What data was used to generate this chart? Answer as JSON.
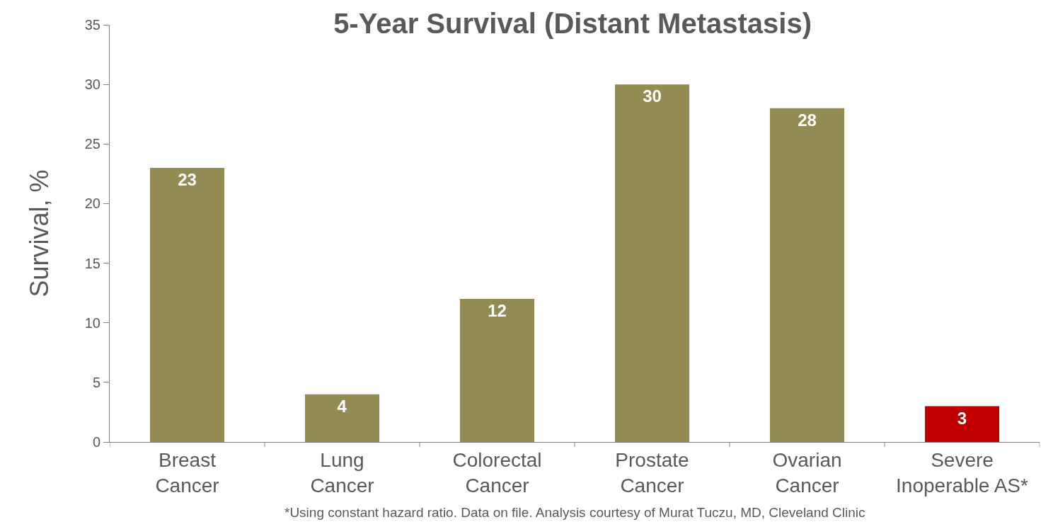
{
  "chart_data": {
    "type": "bar",
    "title": "5-Year Survival (Distant Metastasis)",
    "ylabel": "Survival, %",
    "categories": [
      "Breast\nCancer",
      "Lung\nCancer",
      "Colorectal\nCancer",
      "Prostate\nCancer",
      "Ovarian\nCancer",
      "Severe\nInoperable AS*"
    ],
    "values": [
      23,
      4,
      12,
      30,
      28,
      3
    ],
    "colors": [
      "#948a54",
      "#948a54",
      "#948a54",
      "#948a54",
      "#948a54",
      "#c00000"
    ],
    "ylim": [
      0,
      35
    ],
    "yticks": [
      0,
      5,
      10,
      15,
      20,
      25,
      30,
      35
    ],
    "grid": false,
    "data_labels": true,
    "annotations": [
      "*Using constant hazard ratio. Data on file. Analysis courtesy of Murat Tuczu, MD, Cleveland Clinic"
    ]
  }
}
